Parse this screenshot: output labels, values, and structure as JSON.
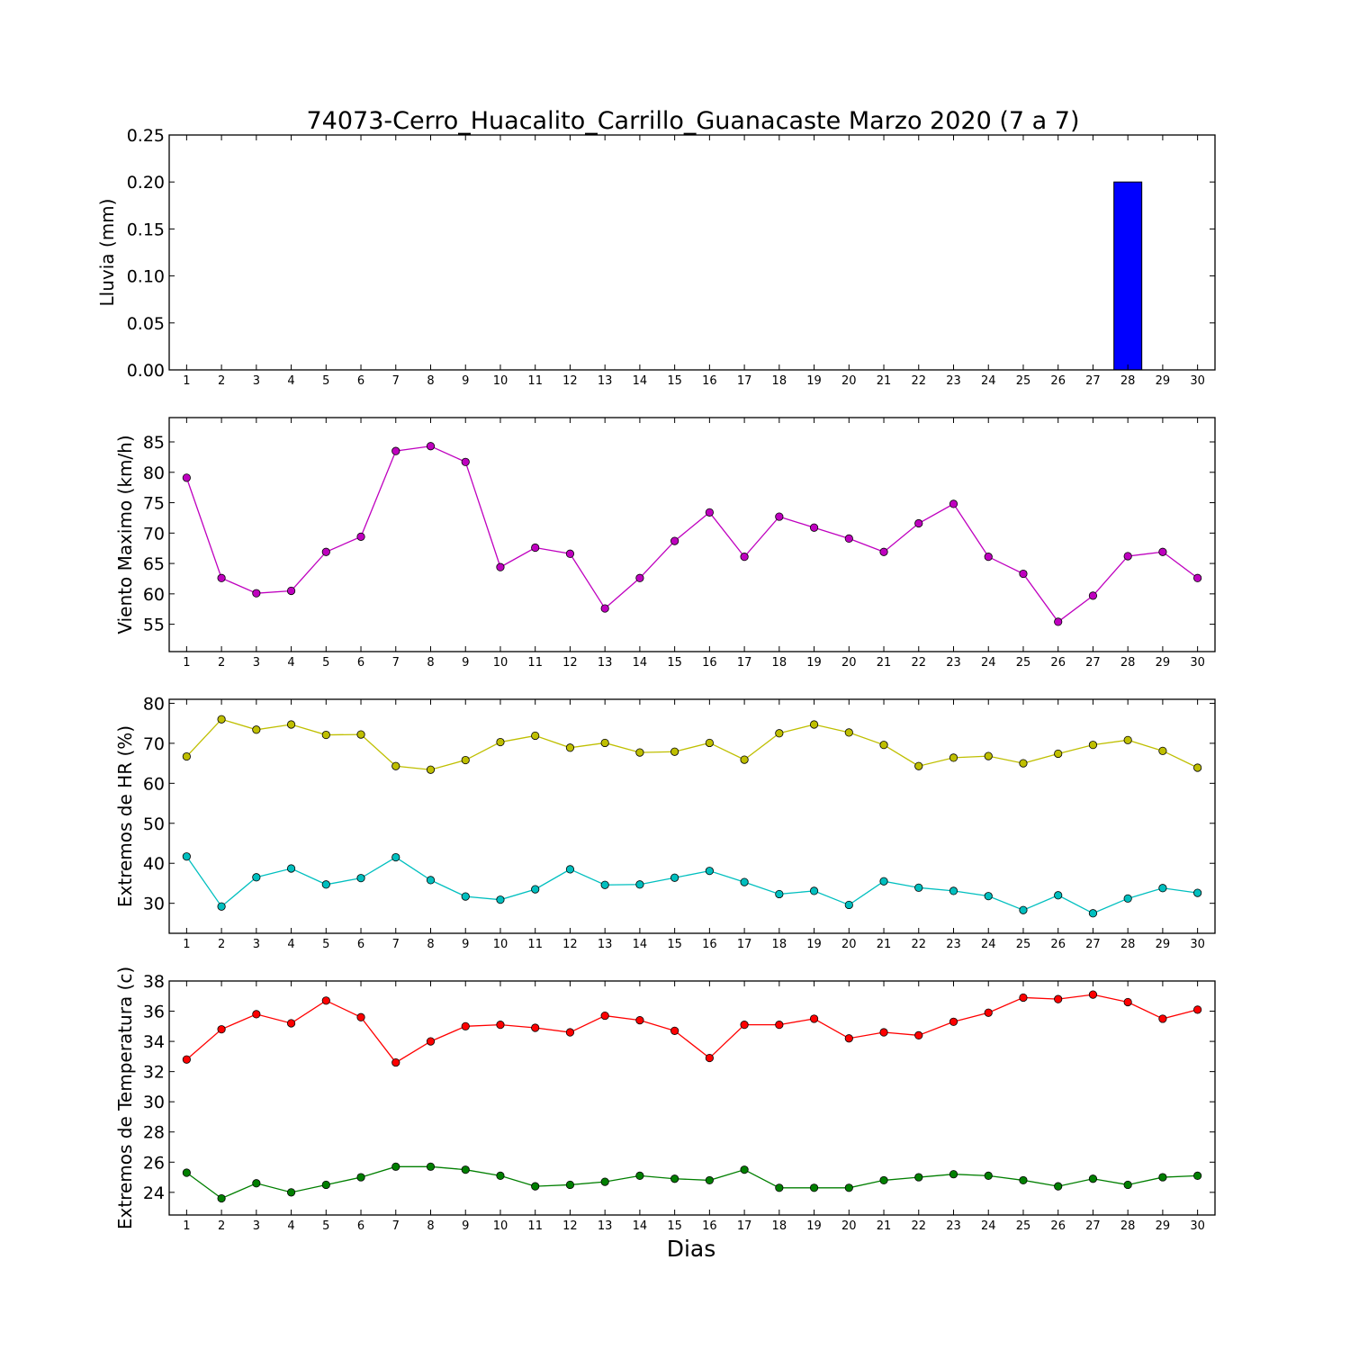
{
  "figure": {
    "title": "74073-Cerro_Huacalito_Carrillo_Guanacaste Marzo 2020  (7 a 7)",
    "xlabel": "Dias"
  },
  "chart_data": [
    {
      "type": "bar",
      "ylabel": "Lluvia (mm)",
      "ylim": [
        0,
        0.25
      ],
      "yticks": [
        "0.00",
        "0.05",
        "0.10",
        "0.15",
        "0.20",
        "0.25"
      ],
      "xticks": [
        1,
        2,
        3,
        4,
        5,
        6,
        7,
        8,
        9,
        10,
        11,
        12,
        13,
        14,
        15,
        16,
        17,
        18,
        19,
        20,
        21,
        22,
        23,
        24,
        25,
        26,
        27,
        28,
        29,
        30
      ],
      "series": [
        {
          "color": "#0000ff",
          "values": [
            0,
            0,
            0,
            0,
            0,
            0,
            0,
            0,
            0,
            0,
            0,
            0,
            0,
            0,
            0,
            0,
            0,
            0,
            0,
            0,
            0,
            0,
            0,
            0,
            0,
            0,
            0,
            0.2,
            0,
            0
          ]
        }
      ]
    },
    {
      "type": "line",
      "ylabel": "Viento Maximo (km/h)",
      "ylim": [
        50.5,
        89
      ],
      "yticks": [
        "55",
        "60",
        "65",
        "70",
        "75",
        "80",
        "85"
      ],
      "xticks": [
        1,
        2,
        3,
        4,
        5,
        6,
        7,
        8,
        9,
        10,
        11,
        12,
        13,
        14,
        15,
        16,
        17,
        18,
        19,
        20,
        21,
        22,
        23,
        24,
        25,
        26,
        27,
        28,
        29,
        30
      ],
      "series": [
        {
          "color": "#bf00bf",
          "values": [
            79.1,
            62.6,
            60.1,
            60.5,
            66.9,
            69.4,
            83.5,
            84.3,
            81.7,
            64.4,
            67.6,
            66.6,
            57.6,
            62.6,
            68.7,
            73.4,
            66.1,
            72.7,
            70.9,
            69.1,
            66.9,
            71.6,
            74.8,
            66.1,
            63.3,
            55.4,
            59.7,
            66.2,
            66.9,
            62.6
          ]
        }
      ]
    },
    {
      "type": "line",
      "ylabel": "Extremos de HR (%)",
      "ylim": [
        22.5,
        81
      ],
      "yticks": [
        "30",
        "40",
        "50",
        "60",
        "70",
        "80"
      ],
      "xticks": [
        1,
        2,
        3,
        4,
        5,
        6,
        7,
        8,
        9,
        10,
        11,
        12,
        13,
        14,
        15,
        16,
        17,
        18,
        19,
        20,
        21,
        22,
        23,
        24,
        25,
        26,
        27,
        28,
        29,
        30
      ],
      "series": [
        {
          "color": "#bfbf00",
          "values": [
            66.7,
            76.0,
            73.4,
            74.7,
            72.1,
            72.2,
            64.3,
            63.4,
            65.8,
            70.3,
            71.9,
            68.9,
            70.1,
            67.7,
            67.9,
            70.1,
            65.9,
            72.5,
            74.7,
            72.7,
            69.6,
            64.3,
            66.4,
            66.8,
            65.0,
            67.4,
            69.6,
            70.8,
            68.1,
            63.9
          ]
        },
        {
          "color": "#00bfbf",
          "values": [
            41.7,
            29.2,
            36.5,
            38.7,
            34.7,
            36.3,
            41.5,
            35.8,
            31.7,
            30.9,
            33.5,
            38.5,
            34.6,
            34.7,
            36.4,
            38.1,
            35.3,
            32.3,
            33.1,
            29.6,
            35.5,
            33.9,
            33.1,
            31.8,
            28.3,
            32.0,
            27.5,
            31.2,
            33.8,
            32.6
          ]
        }
      ]
    },
    {
      "type": "line",
      "ylabel": "Extremos de Temperatura (c)",
      "ylim": [
        22.5,
        38
      ],
      "yticks": [
        "24",
        "26",
        "28",
        "30",
        "32",
        "34",
        "36",
        "38"
      ],
      "xticks": [
        1,
        2,
        3,
        4,
        5,
        6,
        7,
        8,
        9,
        10,
        11,
        12,
        13,
        14,
        15,
        16,
        17,
        18,
        19,
        20,
        21,
        22,
        23,
        24,
        25,
        26,
        27,
        28,
        29,
        30
      ],
      "series": [
        {
          "color": "#ff0000",
          "values": [
            32.8,
            34.8,
            35.8,
            35.2,
            36.7,
            35.6,
            32.6,
            34.0,
            35.0,
            35.1,
            34.9,
            34.6,
            35.7,
            35.4,
            34.7,
            32.9,
            35.1,
            35.1,
            35.5,
            34.2,
            34.6,
            34.4,
            35.3,
            35.9,
            36.9,
            36.8,
            37.1,
            36.6,
            35.5,
            36.1
          ]
        },
        {
          "color": "#007f00",
          "values": [
            25.3,
            23.6,
            24.6,
            24.0,
            24.5,
            25.0,
            25.7,
            25.7,
            25.5,
            25.1,
            24.4,
            24.5,
            24.7,
            25.1,
            24.9,
            24.8,
            25.5,
            24.3,
            24.3,
            24.3,
            24.8,
            25.0,
            25.2,
            25.1,
            24.8,
            24.4,
            24.9,
            24.5,
            25.0,
            25.1
          ]
        }
      ]
    }
  ]
}
